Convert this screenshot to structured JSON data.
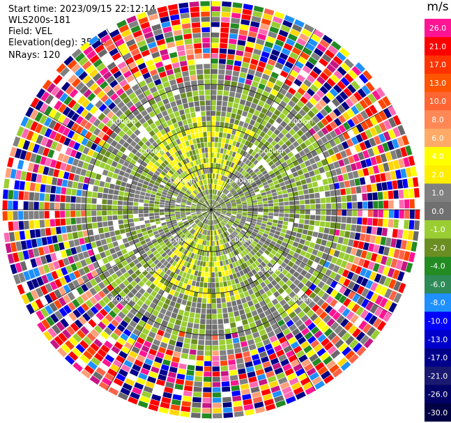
{
  "info": {
    "start_time": "Start time: 2023/09/15 22:12:14",
    "station": "WLS200s-181",
    "field": "Field: VEL",
    "elevation": "Elevation(deg): 35.30",
    "nrays": "NRays: 120"
  },
  "colorbar": {
    "unit": "m/s",
    "levels": [
      {
        "label": "26.0",
        "color": "#ff1493"
      },
      {
        "label": "21.0",
        "color": "#ff0000"
      },
      {
        "label": "17.0",
        "color": "#ff3300"
      },
      {
        "label": "13.0",
        "color": "#ff5500"
      },
      {
        "label": "10.0",
        "color": "#ff6633"
      },
      {
        "label": "8.0",
        "color": "#ff8855"
      },
      {
        "label": "6.0",
        "color": "#ffaa66"
      },
      {
        "label": "4.0",
        "color": "#ffff00"
      },
      {
        "label": "2.0",
        "color": "#ffee00"
      },
      {
        "label": "1.0",
        "color": "#808080"
      },
      {
        "label": "0.0",
        "color": "#707070"
      },
      {
        "label": "-1.0",
        "color": "#9acd32"
      },
      {
        "label": "-2.0",
        "color": "#6b8e23"
      },
      {
        "label": "-4.0",
        "color": "#228b22"
      },
      {
        "label": "-6.0",
        "color": "#2e8b57"
      },
      {
        "label": "-8.0",
        "color": "#1e90ff"
      },
      {
        "label": "-10.0",
        "color": "#0000ff"
      },
      {
        "label": "-13.0",
        "color": "#0000cd"
      },
      {
        "label": "-17.0",
        "color": "#00008b"
      },
      {
        "label": "-21.0",
        "color": "#191970"
      },
      {
        "label": "-26.0",
        "color": "#000066"
      },
      {
        "label": "-30.0",
        "color": "#000044"
      }
    ]
  },
  "chart_data": {
    "type": "heatmap",
    "projection": "polar-ppi",
    "field": "VEL",
    "units": "m/s",
    "n_rays": 120,
    "range_rings_km": [
      1.0,
      2.0,
      3.0
    ],
    "ring_labels": [
      "1.00km",
      "2.00km",
      "3.00km"
    ],
    "max_range_km": 5.0,
    "value_range": [
      -30.0,
      30.0
    ],
    "pattern": "near range dominated by gray (0 to 1 m/s) and green (-1 to -4 m/s) with yellow (2 to 4 m/s) patches; beyond about 3 km the rays show noisy values spanning the full scale"
  }
}
